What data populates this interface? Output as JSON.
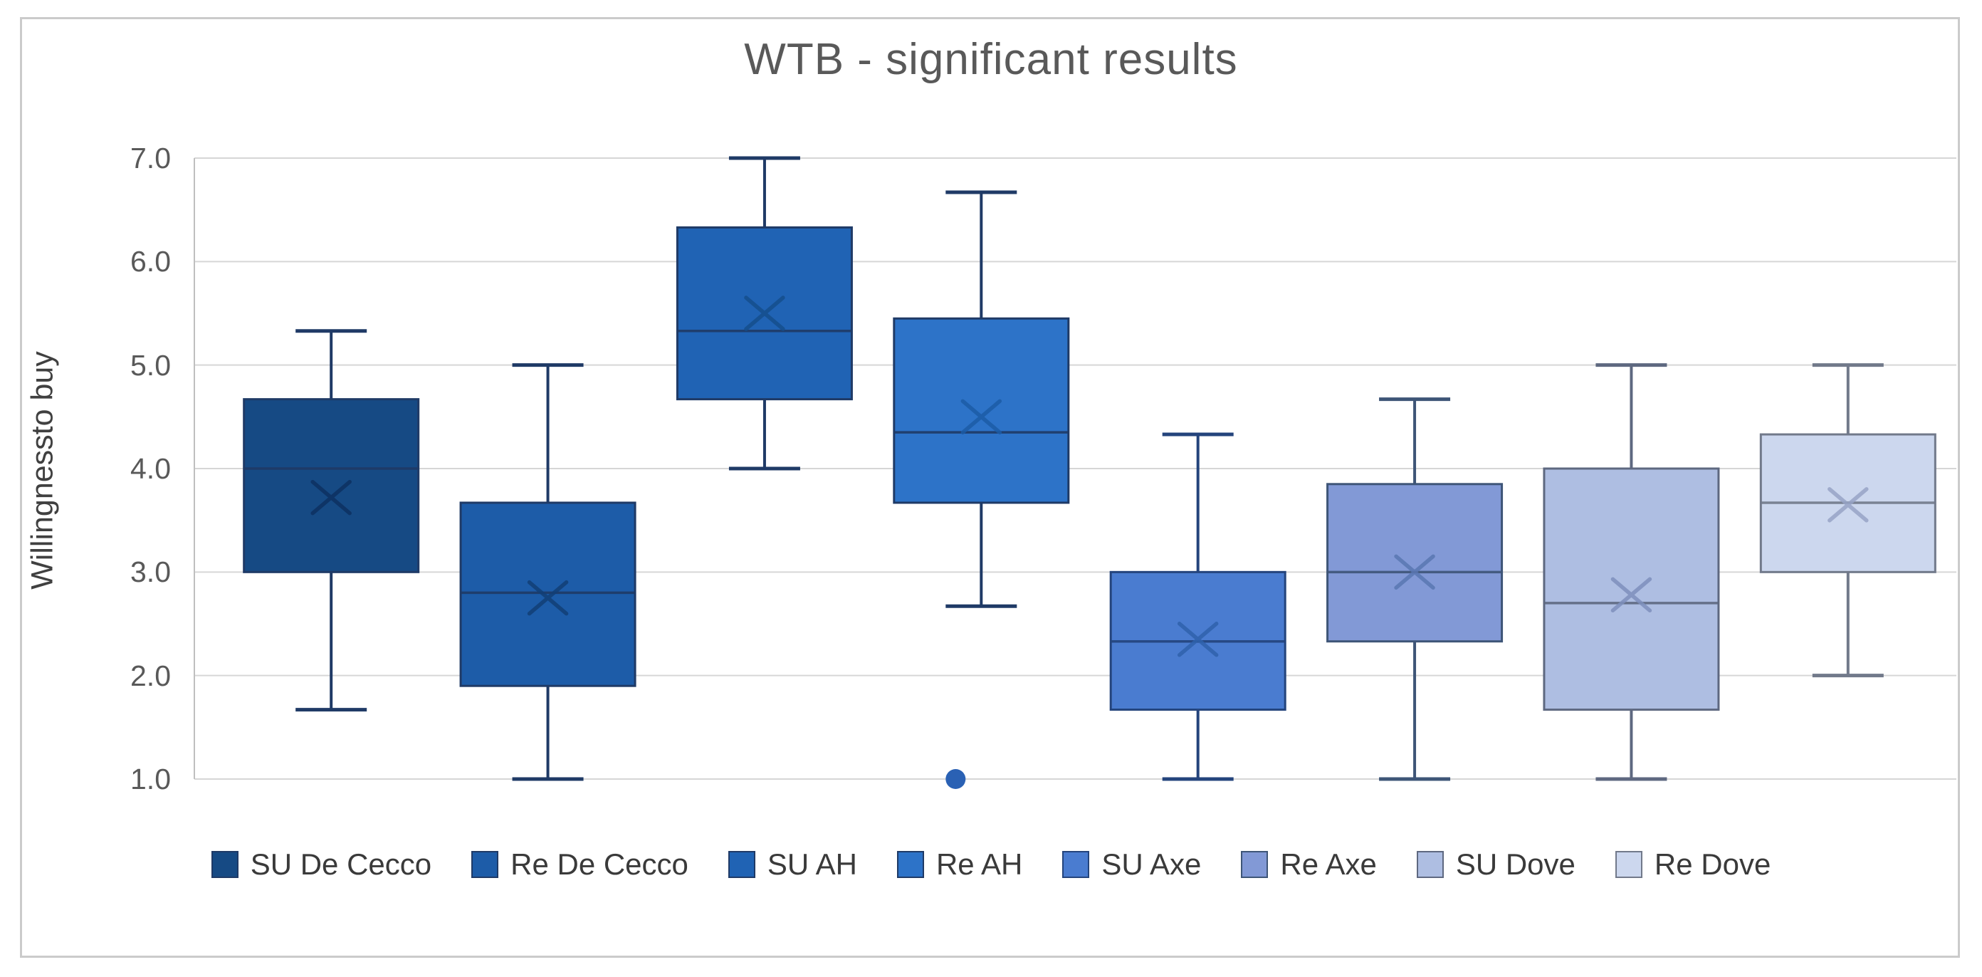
{
  "title": "WTB - significant results",
  "y_axis": {
    "label": "Willingnessto buy",
    "tick_labels": [
      "7.0",
      "6.0",
      "5.0",
      "4.0",
      "3.0",
      "2.0",
      "1.0"
    ],
    "tick_values": [
      7,
      6,
      5,
      4,
      3,
      2,
      1
    ],
    "min": 1.0,
    "max": 7.0
  },
  "colors": {
    "gridline": "#d6d6d6",
    "axis_line": "#bfbfbf",
    "chart_border": "#cbcbcb",
    "title_text": "#595959",
    "tick_text": "#595959",
    "legend_text": "#3a3a3a",
    "outlier": "#2a61b4"
  },
  "chart_data": {
    "type": "box",
    "title": "WTB - significant results",
    "ylabel": "Willingnessto buy",
    "ylim": [
      1.0,
      7.0
    ],
    "y_tick_step": 1.0,
    "grid": "horizontal",
    "legend_position": "bottom",
    "series": [
      {
        "name": "SU De Cecco",
        "min": 1.67,
        "q1": 3.0,
        "median": 4.0,
        "q3": 4.67,
        "max": 5.33,
        "mean": 3.72,
        "outliers": [],
        "fill": "#164a84",
        "stroke": "#1f3a66",
        "mean_color": "#0d3060"
      },
      {
        "name": "Re De Cecco",
        "min": 1.0,
        "q1": 1.9,
        "median": 2.8,
        "q3": 3.67,
        "max": 5.0,
        "mean": 2.75,
        "outliers": [],
        "fill": "#1d5ca8",
        "stroke": "#1f3a66",
        "mean_color": "#123e76"
      },
      {
        "name": "SU AH",
        "min": 4.0,
        "q1": 4.67,
        "median": 5.33,
        "q3": 6.33,
        "max": 7.0,
        "mean": 5.5,
        "outliers": [],
        "fill": "#2063b4",
        "stroke": "#1f3a66",
        "mean_color": "#154e8c"
      },
      {
        "name": "Re AH",
        "min": 2.67,
        "q1": 3.67,
        "median": 4.35,
        "q3": 5.45,
        "max": 6.67,
        "mean": 4.5,
        "outliers": [
          1.0
        ],
        "fill": "#2d73c8",
        "stroke": "#1f3a66",
        "mean_color": "#1c5ca6"
      },
      {
        "name": "SU Axe",
        "min": 1.0,
        "q1": 1.67,
        "median": 2.33,
        "q3": 3.0,
        "max": 4.33,
        "mean": 2.35,
        "outliers": [],
        "fill": "#4a7cd0",
        "stroke": "#24447c",
        "mean_color": "#2f62ac"
      },
      {
        "name": "Re Axe",
        "min": 1.0,
        "q1": 2.33,
        "median": 3.0,
        "q3": 3.85,
        "max": 4.67,
        "mean": 3.0,
        "outliers": [],
        "fill": "#8299d6",
        "stroke": "#3e5577",
        "mean_color": "#5977b2"
      },
      {
        "name": "SU Dove",
        "min": 1.0,
        "q1": 1.67,
        "median": 2.7,
        "q3": 4.0,
        "max": 5.0,
        "mean": 2.78,
        "outliers": [],
        "fill": "#aebee2",
        "stroke": "#5e6880",
        "mean_color": "#7e8fbc"
      },
      {
        "name": "Re Dove",
        "min": 2.0,
        "q1": 3.0,
        "median": 3.67,
        "q3": 4.33,
        "max": 5.0,
        "mean": 3.65,
        "outliers": [],
        "fill": "#ccd7ee",
        "stroke": "#71798a",
        "mean_color": "#97a3c5"
      }
    ]
  }
}
